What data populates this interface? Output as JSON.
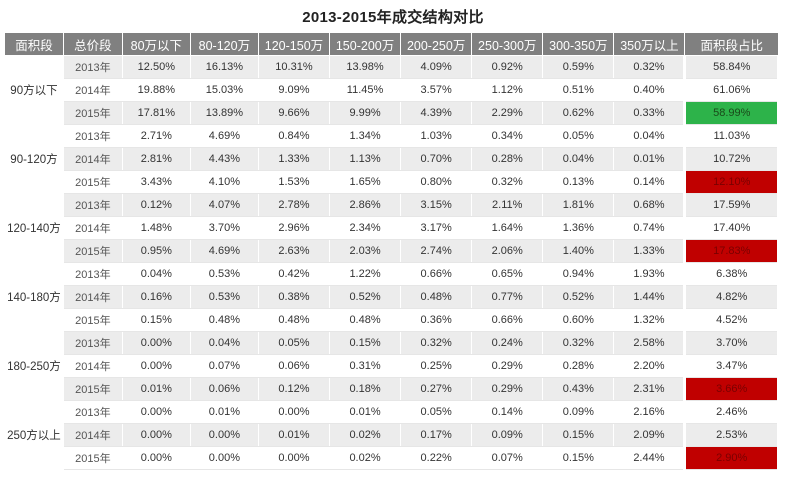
{
  "chart_data": {
    "type": "table",
    "title": "2013-2015年成交结构对比",
    "columns": [
      "面积段",
      "总价段",
      "80万以下",
      "80-120万",
      "120-150万",
      "150-200万",
      "200-250万",
      "250-300万",
      "300-350万",
      "350万以上",
      "面积段占比"
    ],
    "highlight_colors": {
      "green": "#2db34a",
      "red": "#c00000",
      "header": "#808080"
    },
    "groups": [
      {
        "area": "90方以下",
        "rows": [
          {
            "year": "2013年",
            "values": [
              "12.50%",
              "16.13%",
              "10.31%",
              "13.98%",
              "4.09%",
              "0.92%",
              "0.59%",
              "0.32%"
            ],
            "share": "58.84%",
            "highlight": ""
          },
          {
            "year": "2014年",
            "values": [
              "19.88%",
              "15.03%",
              "9.09%",
              "11.45%",
              "3.57%",
              "1.12%",
              "0.51%",
              "0.40%"
            ],
            "share": "61.06%",
            "highlight": ""
          },
          {
            "year": "2015年",
            "values": [
              "17.81%",
              "13.89%",
              "9.66%",
              "9.99%",
              "4.39%",
              "2.29%",
              "0.62%",
              "0.33%"
            ],
            "share": "58.99%",
            "highlight": "green"
          }
        ]
      },
      {
        "area": "90-120方",
        "rows": [
          {
            "year": "2013年",
            "values": [
              "2.71%",
              "4.69%",
              "0.84%",
              "1.34%",
              "1.03%",
              "0.34%",
              "0.05%",
              "0.04%"
            ],
            "share": "11.03%",
            "highlight": ""
          },
          {
            "year": "2014年",
            "values": [
              "2.81%",
              "4.43%",
              "1.33%",
              "1.13%",
              "0.70%",
              "0.28%",
              "0.04%",
              "0.01%"
            ],
            "share": "10.72%",
            "highlight": ""
          },
          {
            "year": "2015年",
            "values": [
              "3.43%",
              "4.10%",
              "1.53%",
              "1.65%",
              "0.80%",
              "0.32%",
              "0.13%",
              "0.14%"
            ],
            "share": "12.10%",
            "highlight": "red"
          }
        ]
      },
      {
        "area": "120-140方",
        "rows": [
          {
            "year": "2013年",
            "values": [
              "0.12%",
              "4.07%",
              "2.78%",
              "2.86%",
              "3.15%",
              "2.11%",
              "1.81%",
              "0.68%"
            ],
            "share": "17.59%",
            "highlight": ""
          },
          {
            "year": "2014年",
            "values": [
              "1.48%",
              "3.70%",
              "2.96%",
              "2.34%",
              "3.17%",
              "1.64%",
              "1.36%",
              "0.74%"
            ],
            "share": "17.40%",
            "highlight": ""
          },
          {
            "year": "2015年",
            "values": [
              "0.95%",
              "4.69%",
              "2.63%",
              "2.03%",
              "2.74%",
              "2.06%",
              "1.40%",
              "1.33%"
            ],
            "share": "17.83%",
            "highlight": "red"
          }
        ]
      },
      {
        "area": "140-180方",
        "rows": [
          {
            "year": "2013年",
            "values": [
              "0.04%",
              "0.53%",
              "0.42%",
              "1.22%",
              "0.66%",
              "0.65%",
              "0.94%",
              "1.93%"
            ],
            "share": "6.38%",
            "highlight": ""
          },
          {
            "year": "2014年",
            "values": [
              "0.16%",
              "0.53%",
              "0.38%",
              "0.52%",
              "0.48%",
              "0.77%",
              "0.52%",
              "1.44%"
            ],
            "share": "4.82%",
            "highlight": ""
          },
          {
            "year": "2015年",
            "values": [
              "0.15%",
              "0.48%",
              "0.48%",
              "0.48%",
              "0.36%",
              "0.66%",
              "0.60%",
              "1.32%"
            ],
            "share": "4.52%",
            "highlight": ""
          }
        ]
      },
      {
        "area": "180-250方",
        "rows": [
          {
            "year": "2013年",
            "values": [
              "0.00%",
              "0.04%",
              "0.05%",
              "0.15%",
              "0.32%",
              "0.24%",
              "0.32%",
              "2.58%"
            ],
            "share": "3.70%",
            "highlight": ""
          },
          {
            "year": "2014年",
            "values": [
              "0.00%",
              "0.07%",
              "0.06%",
              "0.31%",
              "0.25%",
              "0.29%",
              "0.28%",
              "2.20%"
            ],
            "share": "3.47%",
            "highlight": ""
          },
          {
            "year": "2015年",
            "values": [
              "0.01%",
              "0.06%",
              "0.12%",
              "0.18%",
              "0.27%",
              "0.29%",
              "0.43%",
              "2.31%"
            ],
            "share": "3.66%",
            "highlight": "red"
          }
        ]
      },
      {
        "area": "250方以上",
        "rows": [
          {
            "year": "2013年",
            "values": [
              "0.00%",
              "0.01%",
              "0.00%",
              "0.01%",
              "0.05%",
              "0.14%",
              "0.09%",
              "2.16%"
            ],
            "share": "2.46%",
            "highlight": ""
          },
          {
            "year": "2014年",
            "values": [
              "0.00%",
              "0.00%",
              "0.01%",
              "0.02%",
              "0.17%",
              "0.09%",
              "0.15%",
              "2.09%"
            ],
            "share": "2.53%",
            "highlight": ""
          },
          {
            "year": "2015年",
            "values": [
              "0.00%",
              "0.00%",
              "0.00%",
              "0.02%",
              "0.22%",
              "0.07%",
              "0.15%",
              "2.44%"
            ],
            "share": "2.90%",
            "highlight": "red"
          }
        ]
      }
    ]
  }
}
